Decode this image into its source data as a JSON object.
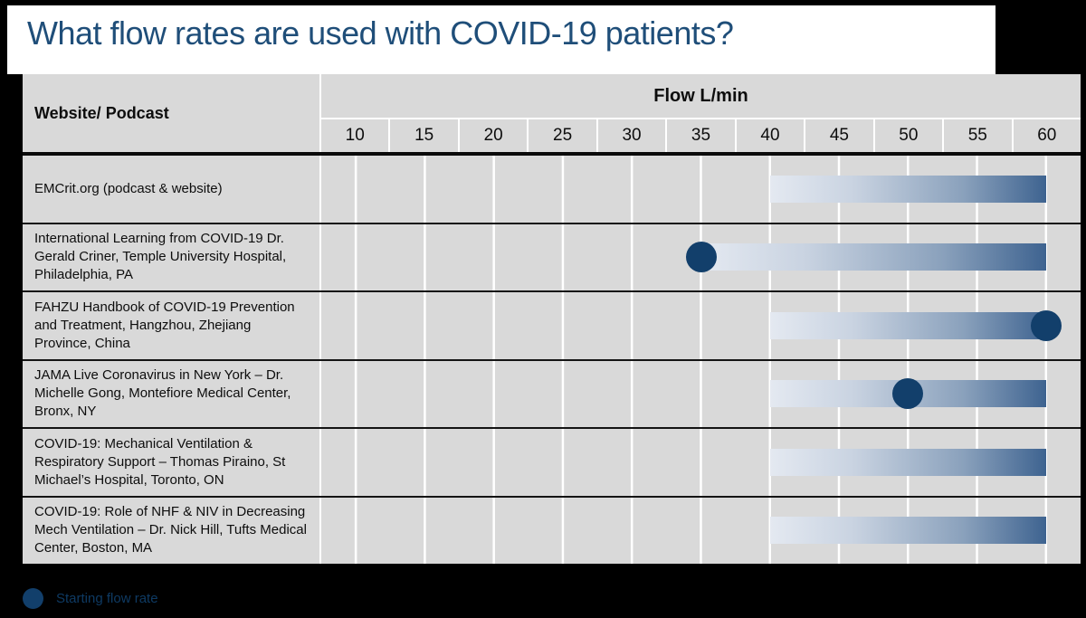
{
  "slide": {
    "title": "What flow rates are used with COVID-19 patients?"
  },
  "table": {
    "corner_header": "Website/ Podcast",
    "flow_header": "Flow L/min",
    "ticks": [
      "10",
      "15",
      "20",
      "25",
      "30",
      "35",
      "40",
      "45",
      "50",
      "55",
      "60"
    ]
  },
  "legend": {
    "dot_label": "Starting flow rate"
  },
  "colors": {
    "title_blue": "#1f4e79",
    "table_gray": "#d9d9d9",
    "dot_navy": "#123f6b",
    "bar_gradient_start": "#e4e9f1",
    "bar_gradient_end": "#3e6390",
    "legend_text": "#0e3a63"
  },
  "chart_data": {
    "type": "bar",
    "subtype": "range-bars-with-markers",
    "title": "What flow rates are used with COVID-19 patients?",
    "xlabel": "Flow L/min",
    "x_ticks": [
      10,
      15,
      20,
      25,
      30,
      35,
      40,
      45,
      50,
      55,
      60
    ],
    "xlim": [
      10,
      60
    ],
    "grid": "vertical-white-lines-at-tick-centers",
    "legend_position": "bottom-left",
    "marker_meaning": "Starting flow rate",
    "rows": [
      {
        "label": "EMCrit.org (podcast & website)",
        "bar_start": 40,
        "bar_end": 60,
        "dot": null
      },
      {
        "label": "International Learning from COVID-19 Dr. Gerald Criner, Temple University Hospital, Philadelphia, PA",
        "bar_start": 35,
        "bar_end": 60,
        "dot": 35
      },
      {
        "label": "FAHZU Handbook of COVID-19 Prevention and Treatment, Hangzhou, Zhejiang Province, China",
        "bar_start": 40,
        "bar_end": 60,
        "dot": 60
      },
      {
        "label": "JAMA Live Coronavirus in New York – Dr. Michelle Gong, Montefiore Medical Center, Bronx, NY",
        "bar_start": 40,
        "bar_end": 60,
        "dot": 50
      },
      {
        "label": "COVID-19: Mechanical Ventilation & Respiratory Support – Thomas Piraino, St Michael’s Hospital, Toronto, ON",
        "bar_start": 40,
        "bar_end": 60,
        "dot": null
      },
      {
        "label": "COVID-19: Role of NHF & NIV in Decreasing Mech Ventilation – Dr. Nick Hill, Tufts Medical Center, Boston, MA",
        "bar_start": 40,
        "bar_end": 60,
        "dot": null
      }
    ]
  }
}
